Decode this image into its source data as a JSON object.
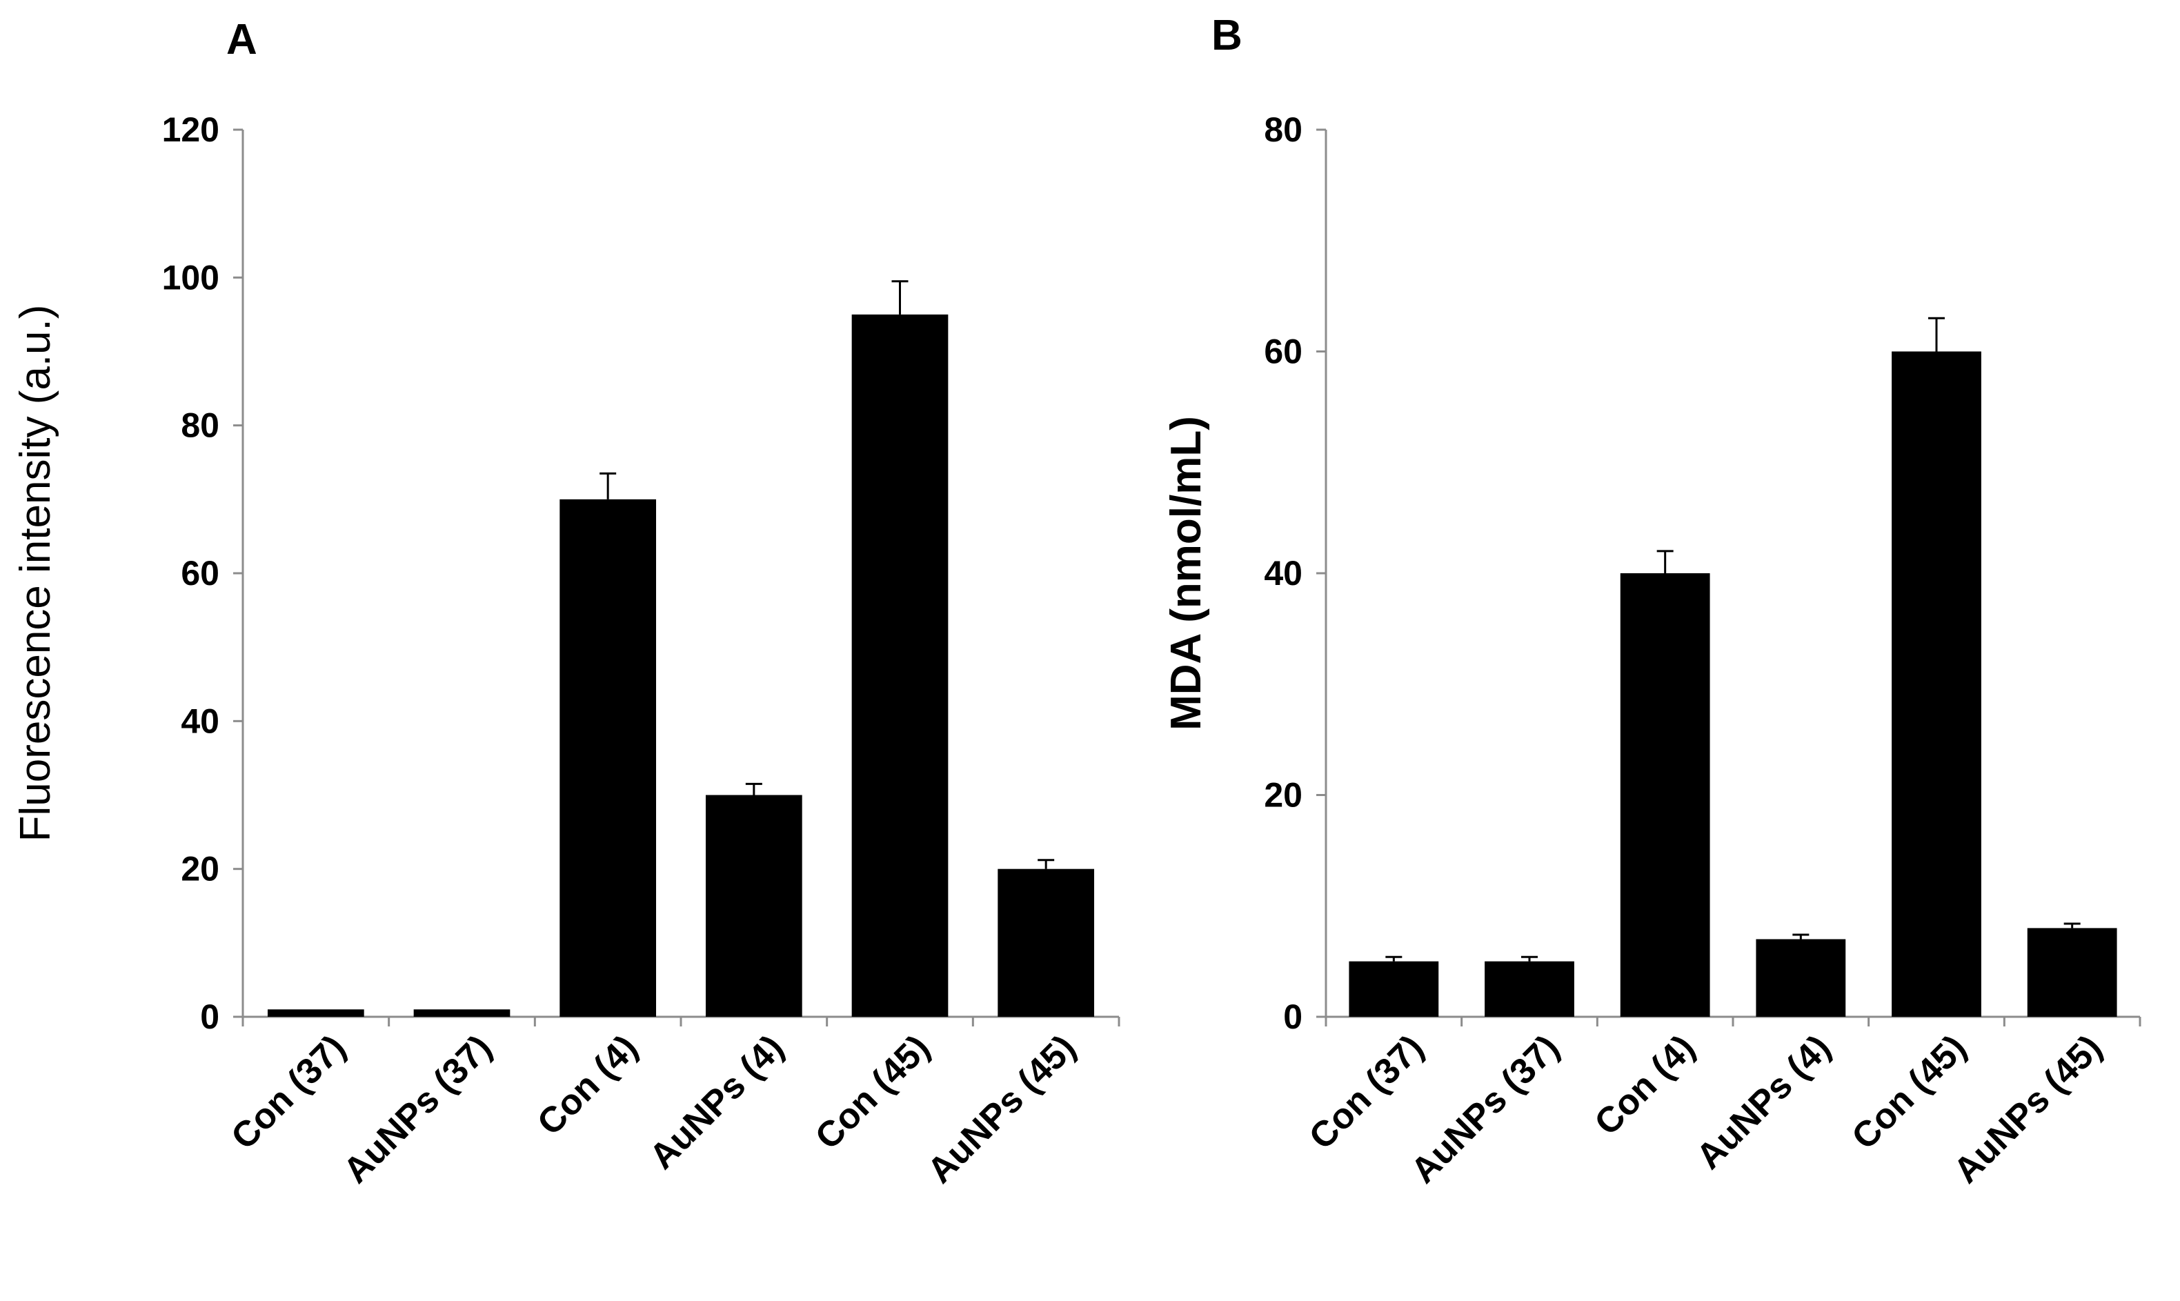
{
  "chart_data": [
    {
      "type": "bar",
      "panel": "A",
      "ylabel": "Fluorescence intensity (a.u.)",
      "xlabel": "",
      "ylim": [
        0,
        120
      ],
      "yticks": [
        "0",
        "20",
        "40",
        "60",
        "80",
        "100",
        "120"
      ],
      "yticks_values": [
        0,
        20,
        40,
        60,
        80,
        100,
        120
      ],
      "grid": false,
      "categories": [
        "Con (37)",
        "AuNPs (37)",
        "Con (4)",
        "AuNPs (4)",
        "Con (45)",
        "AuNPs (45)"
      ],
      "values": [
        1,
        1,
        70,
        30,
        95,
        20
      ],
      "errors": [
        0,
        0,
        3.5,
        1.5,
        4.5,
        1.2
      ],
      "bar_color": "#000000"
    },
    {
      "type": "bar",
      "panel": "B",
      "ylabel": "MDA (nmol/mL)",
      "xlabel": "",
      "ylim": [
        0,
        80
      ],
      "yticks": [
        "0",
        "20",
        "40",
        "60",
        "80"
      ],
      "yticks_values": [
        0,
        20,
        40,
        60,
        80
      ],
      "grid": false,
      "categories": [
        "Con (37)",
        "AuNPs (37)",
        "Con (4)",
        "AuNPs (4)",
        "Con (45)",
        "AuNPs (45)"
      ],
      "values": [
        5,
        5,
        40,
        7,
        60,
        8
      ],
      "errors": [
        0.4,
        0.4,
        2,
        0.4,
        3,
        0.4
      ],
      "bar_color": "#000000"
    }
  ]
}
